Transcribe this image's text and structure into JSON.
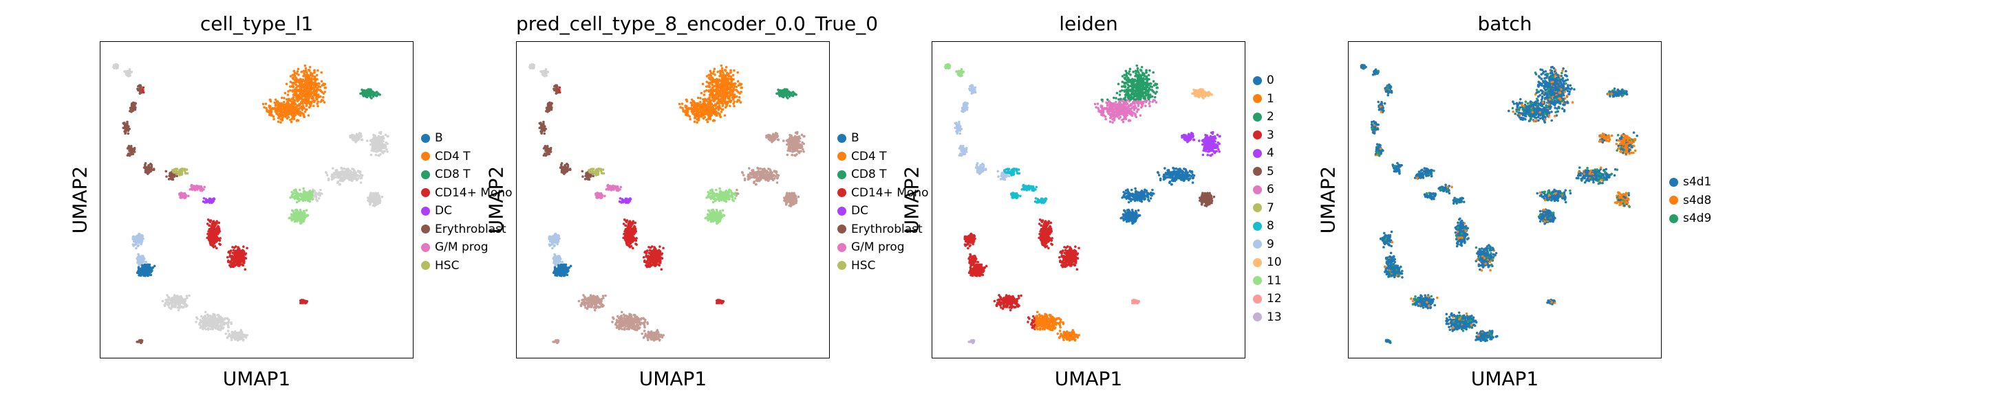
{
  "palette": {
    "B": "#1f77b4",
    "CD4 T": "#ff7f0e",
    "CD8 T": "#279e68",
    "CD14+ Mono": "#d62728",
    "DC": "#aa40fc",
    "Erythroblast": "#8c564b",
    "G/M prog": "#e377c2",
    "HSC": "#b5bd61",
    "other": "#d3d3d3",
    "leiden": [
      "#1f77b4",
      "#ff7f0e",
      "#279e68",
      "#d62728",
      "#aa40fc",
      "#8c564b",
      "#e377c2",
      "#b5bd61",
      "#17becf",
      "#aec7e8",
      "#ffbb78",
      "#98df8a",
      "#ff9896",
      "#c5b0d5"
    ],
    "batch": [
      "#1f77b4",
      "#ff7f0e",
      "#279e68"
    ]
  },
  "chart_data": [
    {
      "type": "scatter",
      "title": "cell_type_l1",
      "xlabel": "UMAP1",
      "ylabel": "UMAP2",
      "grid": false,
      "legend_position": "right",
      "legend": [
        "B",
        "CD4 T",
        "CD8 T",
        "CD14+ Mono",
        "DC",
        "Erythroblast",
        "G/M prog",
        "HSC"
      ]
    },
    {
      "type": "scatter",
      "title": "pred_cell_type_8_encoder_0.0_True_0",
      "xlabel": "UMAP1",
      "ylabel": "UMAP2",
      "grid": false,
      "legend_position": "right",
      "legend": [
        "B",
        "CD4 T",
        "CD8 T",
        "CD14+ Mono",
        "DC",
        "Erythroblast",
        "G/M prog",
        "HSC"
      ]
    },
    {
      "type": "scatter",
      "title": "leiden",
      "xlabel": "UMAP1",
      "ylabel": "UMAP2",
      "grid": false,
      "legend_position": "right",
      "legend": [
        "0",
        "1",
        "2",
        "3",
        "4",
        "5",
        "6",
        "7",
        "8",
        "9",
        "10",
        "11",
        "12",
        "13"
      ]
    },
    {
      "type": "scatter",
      "title": "batch",
      "xlabel": "UMAP1",
      "ylabel": "UMAP2",
      "grid": false,
      "legend_position": "right",
      "legend": [
        "s4d1",
        "s4d8",
        "s4d9"
      ]
    }
  ]
}
